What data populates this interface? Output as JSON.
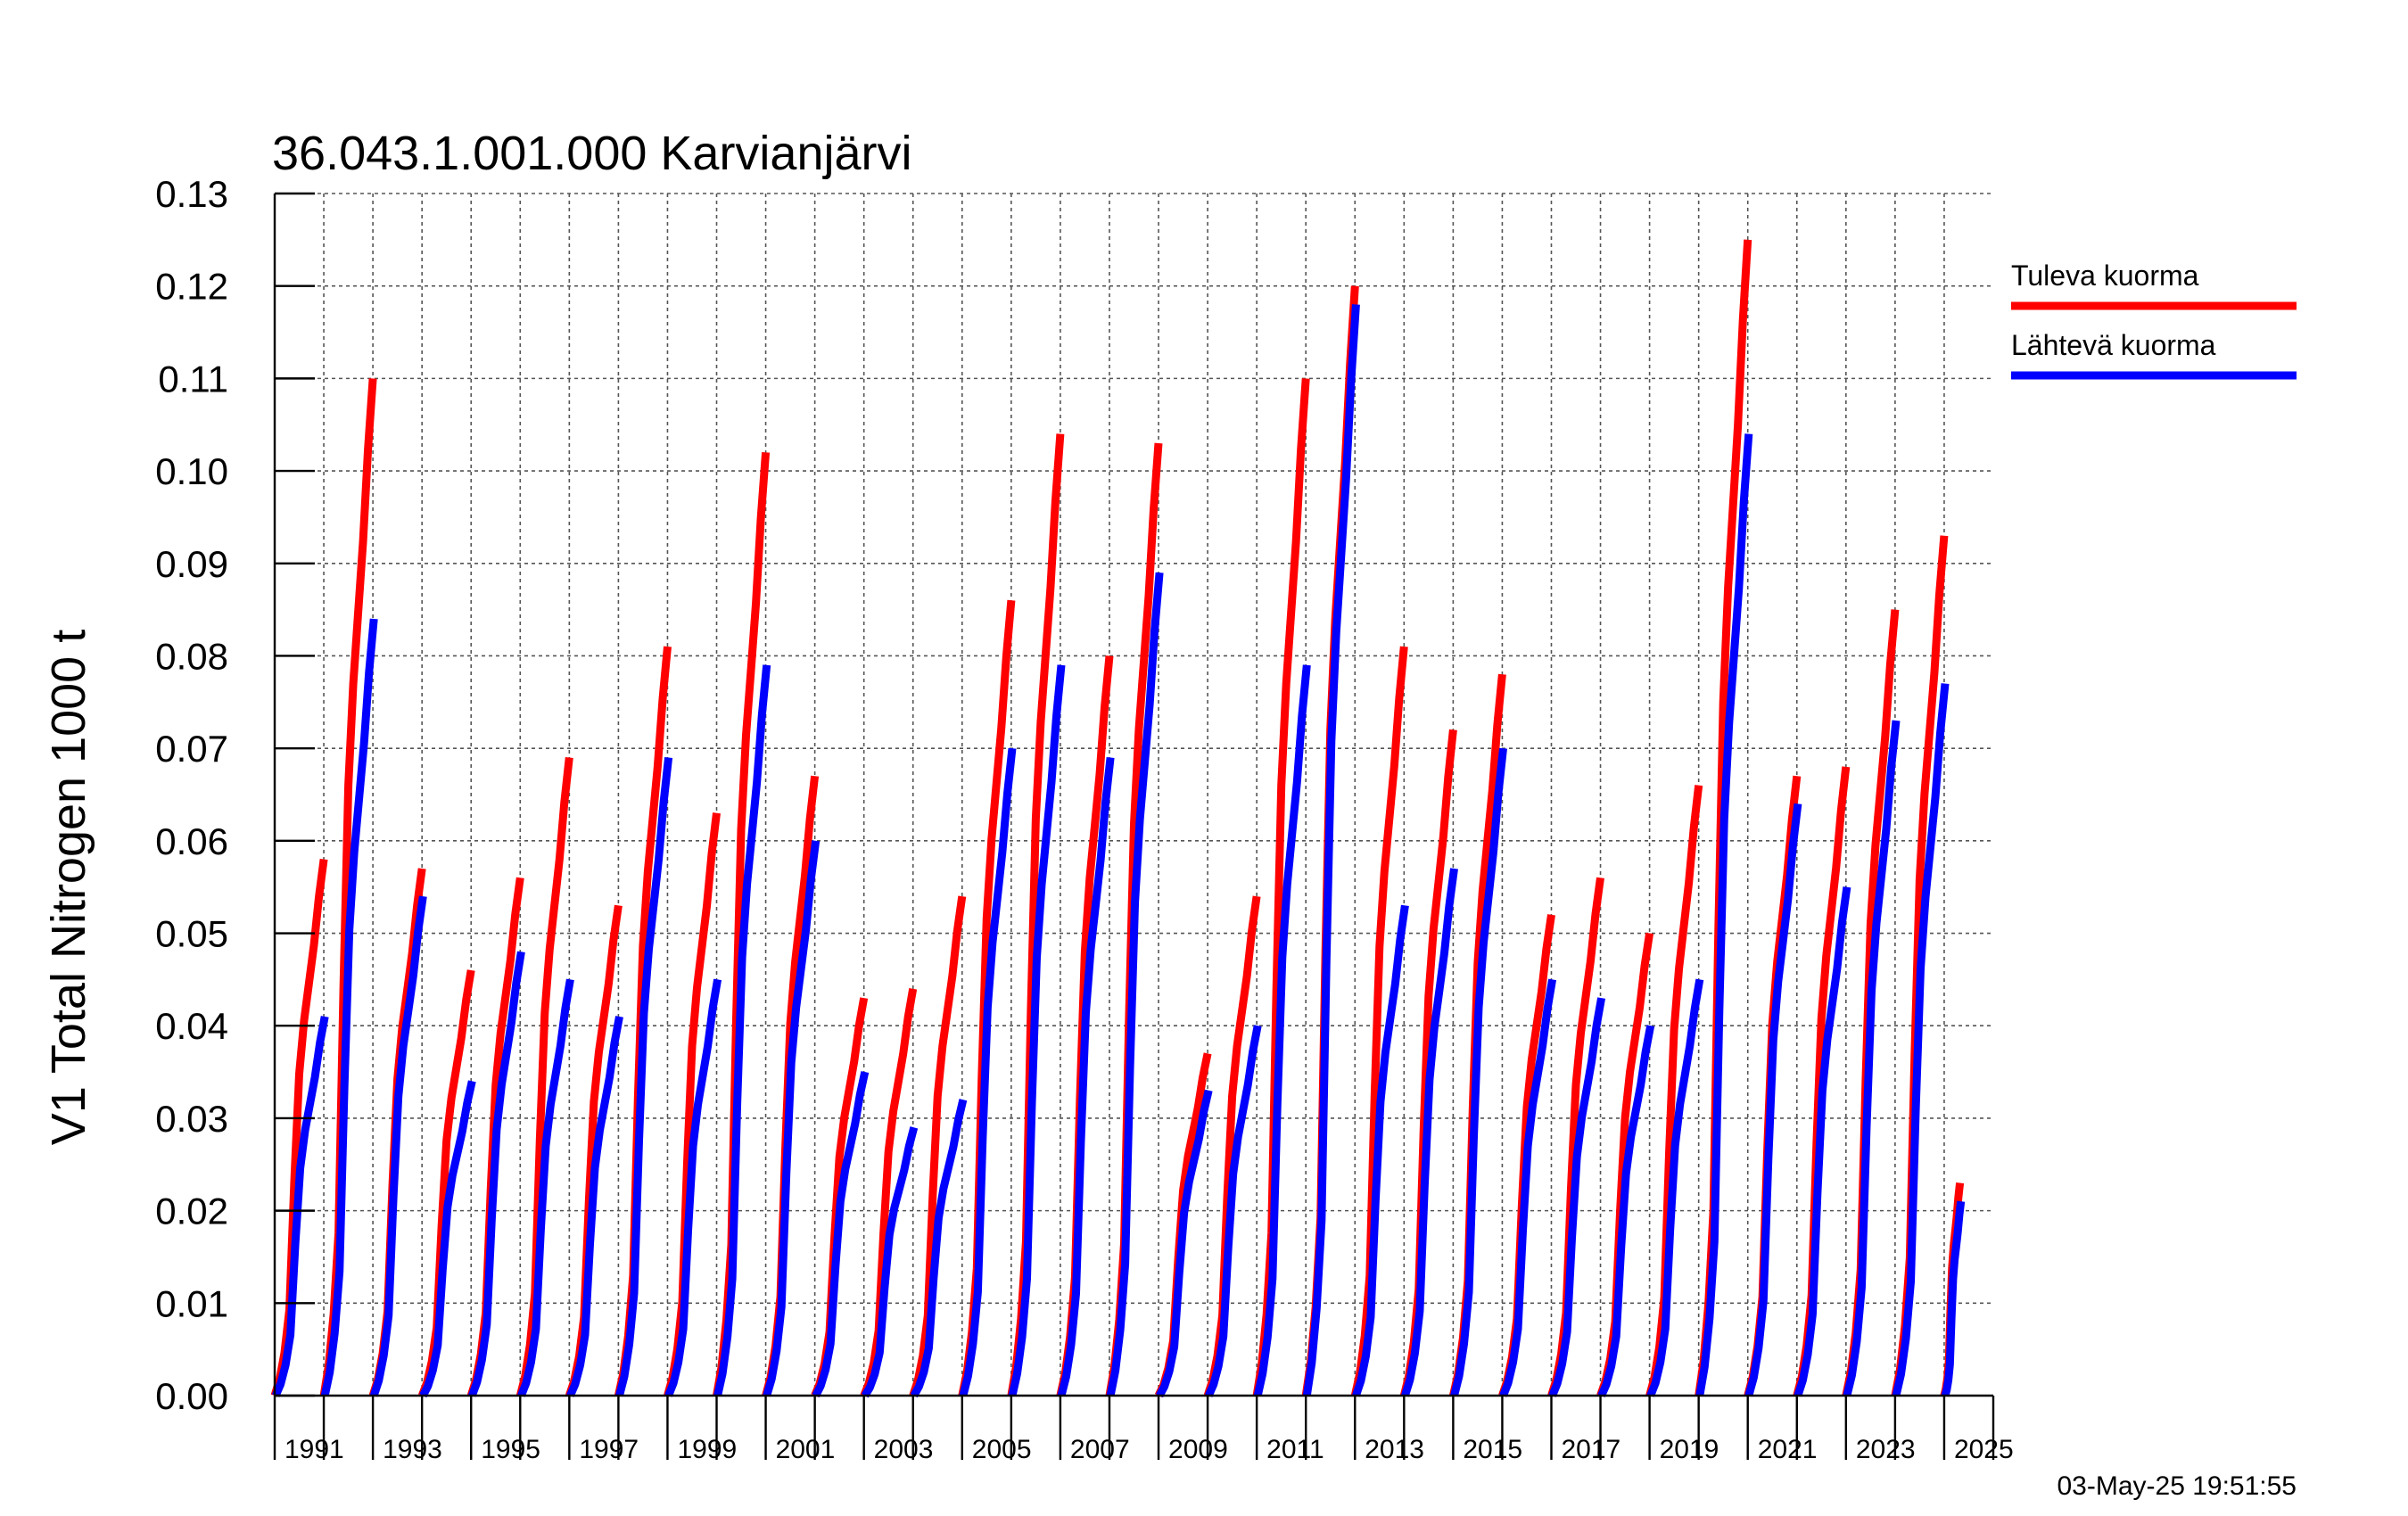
{
  "chart_data": {
    "type": "line",
    "title": "36.043.1.001.000 Karvianjärvi",
    "ylabel": "V1 Total Nitrogen 1000 t",
    "xlabel": "",
    "ylim": [
      0,
      0.13
    ],
    "xlim": [
      1990,
      2025
    ],
    "yticks": [
      "0.00",
      "0.01",
      "0.02",
      "0.03",
      "0.04",
      "0.05",
      "0.06",
      "0.07",
      "0.08",
      "0.09",
      "0.10",
      "0.11",
      "0.12",
      "0.13"
    ],
    "xtick_labels": [
      "1991",
      "1993",
      "1995",
      "1997",
      "1999",
      "2001",
      "2003",
      "2005",
      "2007",
      "2009",
      "2011",
      "2013",
      "2015",
      "2017",
      "2019",
      "2021",
      "2023",
      "2025"
    ],
    "grid": true,
    "legend_position": "right",
    "timestamp": "03-May-25 19:51:55",
    "series": [
      {
        "name": "Tuleva kuorma",
        "color": "#ff0000",
        "annual_totals": [
          0.058,
          0.11,
          0.057,
          0.046,
          0.056,
          0.069,
          0.053,
          0.081,
          0.063,
          0.102,
          0.067,
          0.043,
          0.044,
          0.054,
          0.086,
          0.104,
          0.08,
          0.103,
          0.037,
          0.054,
          0.11,
          0.12,
          0.081,
          0.072,
          0.078,
          0.052,
          0.056,
          0.05,
          0.066,
          0.125,
          0.067,
          0.068,
          0.085,
          0.093,
          0.023
        ]
      },
      {
        "name": "Lähtevä kuorma",
        "color": "#0000ff",
        "annual_totals": [
          0.041,
          0.084,
          0.054,
          0.034,
          0.048,
          0.045,
          0.041,
          0.069,
          0.045,
          0.079,
          0.06,
          0.035,
          0.029,
          0.032,
          0.07,
          0.079,
          0.069,
          0.089,
          0.033,
          0.04,
          0.079,
          0.118,
          0.053,
          0.057,
          0.07,
          0.045,
          0.043,
          0.04,
          0.045,
          0.104,
          0.064,
          0.055,
          0.073,
          0.077,
          0.021
        ]
      }
    ]
  }
}
